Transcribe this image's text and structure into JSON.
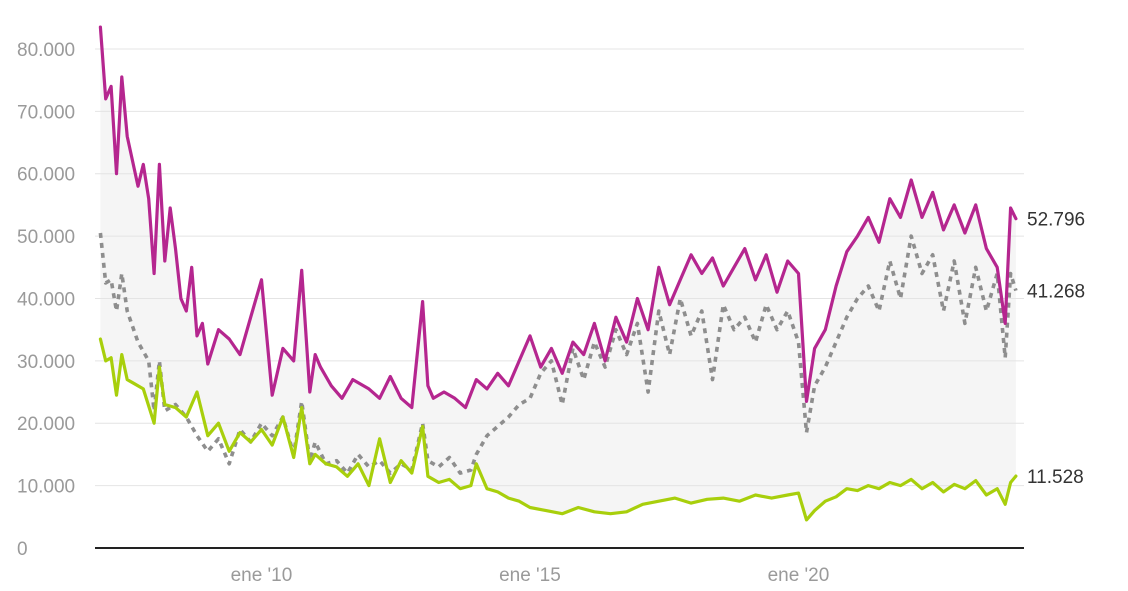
{
  "chart_data": {
    "type": "line",
    "y_ticks": [
      "0",
      "10.000",
      "20.000",
      "30.000",
      "40.000",
      "50.000",
      "60.000",
      "70.000",
      "80.000"
    ],
    "y_tick_values": [
      0,
      10000,
      20000,
      30000,
      40000,
      50000,
      60000,
      70000,
      80000
    ],
    "x_ticks": [
      {
        "label": "ene '10",
        "value": 2010.0
      },
      {
        "label": "ene '15",
        "value": 2015.0
      },
      {
        "label": "ene '20",
        "value": 2020.0
      }
    ],
    "xlim": [
      2006.9,
      2024.2
    ],
    "ylim": [
      0,
      84000
    ],
    "grid": true,
    "colors": {
      "magenta": "#b5268f",
      "green": "#a8cf0c",
      "gray": "#8e8e8e",
      "band": "#f5f5f5"
    },
    "series": [
      {
        "id": "magenta",
        "style": "solid",
        "end_label": "52.796",
        "x": [
          2007.0,
          2007.1,
          2007.2,
          2007.3,
          2007.4,
          2007.5,
          2007.6,
          2007.7,
          2007.8,
          2007.9,
          2008.0,
          2008.1,
          2008.2,
          2008.3,
          2008.4,
          2008.5,
          2008.6,
          2008.7,
          2008.8,
          2008.9,
          2009.0,
          2009.2,
          2009.4,
          2009.6,
          2009.8,
          2010.0,
          2010.2,
          2010.4,
          2010.6,
          2010.75,
          2010.9,
          2011.0,
          2011.1,
          2011.3,
          2011.5,
          2011.7,
          2012.0,
          2012.2,
          2012.4,
          2012.6,
          2012.8,
          2013.0,
          2013.1,
          2013.2,
          2013.4,
          2013.6,
          2013.8,
          2014.0,
          2014.2,
          2014.4,
          2014.6,
          2014.8,
          2015.0,
          2015.2,
          2015.4,
          2015.6,
          2015.8,
          2016.0,
          2016.2,
          2016.4,
          2016.6,
          2016.8,
          2017.0,
          2017.2,
          2017.4,
          2017.6,
          2017.8,
          2018.0,
          2018.2,
          2018.4,
          2018.6,
          2018.8,
          2019.0,
          2019.2,
          2019.4,
          2019.6,
          2019.8,
          2020.0,
          2020.15,
          2020.3,
          2020.5,
          2020.7,
          2020.9,
          2021.1,
          2021.3,
          2021.5,
          2021.7,
          2021.9,
          2022.1,
          2022.3,
          2022.5,
          2022.7,
          2022.9,
          2023.1,
          2023.3,
          2023.5,
          2023.7,
          2023.85,
          2023.95,
          2024.05
        ],
        "y": [
          83500,
          72000,
          74000,
          60000,
          75500,
          66000,
          62000,
          58000,
          61500,
          56000,
          44000,
          61500,
          46000,
          54500,
          48000,
          40000,
          38000,
          45000,
          34000,
          36000,
          29500,
          35000,
          33500,
          31000,
          37000,
          43000,
          24500,
          32000,
          30000,
          44500,
          25000,
          31000,
          29000,
          26000,
          24000,
          27000,
          25500,
          24000,
          27500,
          24000,
          22500,
          39500,
          26000,
          24000,
          25000,
          24000,
          22500,
          27000,
          25500,
          28000,
          26000,
          30000,
          34000,
          29000,
          32000,
          28000,
          33000,
          31000,
          36000,
          30000,
          37000,
          33000,
          40000,
          35000,
          45000,
          39000,
          43000,
          47000,
          44000,
          46500,
          42000,
          45000,
          48000,
          43000,
          47000,
          41000,
          46000,
          44000,
          23500,
          32000,
          35000,
          42000,
          47500,
          50000,
          53000,
          49000,
          56000,
          53000,
          59000,
          53000,
          57000,
          51000,
          55000,
          50500,
          55000,
          48000,
          45000,
          36000,
          54500,
          52796
        ]
      },
      {
        "id": "gray",
        "style": "dotted",
        "end_label": "41.268",
        "x": [
          2007.0,
          2007.1,
          2007.2,
          2007.3,
          2007.4,
          2007.5,
          2007.7,
          2007.9,
          2008.0,
          2008.1,
          2008.2,
          2008.4,
          2008.6,
          2008.8,
          2009.0,
          2009.2,
          2009.4,
          2009.6,
          2009.8,
          2010.0,
          2010.2,
          2010.4,
          2010.6,
          2010.75,
          2010.9,
          2011.0,
          2011.2,
          2011.4,
          2011.6,
          2011.8,
          2012.0,
          2012.2,
          2012.4,
          2012.6,
          2012.8,
          2013.0,
          2013.1,
          2013.3,
          2013.5,
          2013.7,
          2013.9,
          2014.0,
          2014.2,
          2014.4,
          2014.6,
          2014.8,
          2015.0,
          2015.2,
          2015.4,
          2015.6,
          2015.8,
          2016.0,
          2016.2,
          2016.4,
          2016.6,
          2016.8,
          2017.0,
          2017.2,
          2017.4,
          2017.6,
          2017.8,
          2018.0,
          2018.2,
          2018.4,
          2018.6,
          2018.8,
          2019.0,
          2019.2,
          2019.4,
          2019.6,
          2019.8,
          2020.0,
          2020.15,
          2020.3,
          2020.5,
          2020.7,
          2020.9,
          2021.1,
          2021.3,
          2021.5,
          2021.7,
          2021.9,
          2022.1,
          2022.3,
          2022.5,
          2022.7,
          2022.9,
          2023.1,
          2023.3,
          2023.5,
          2023.7,
          2023.85,
          2023.95,
          2024.05
        ],
        "y": [
          50500,
          42500,
          43000,
          38000,
          44000,
          38000,
          33000,
          30000,
          22000,
          30000,
          22000,
          23000,
          21000,
          18000,
          15500,
          17500,
          13500,
          19000,
          17000,
          20000,
          18000,
          21000,
          15000,
          23500,
          14000,
          17000,
          13500,
          14000,
          12000,
          15000,
          13000,
          14000,
          12000,
          13500,
          12500,
          20000,
          14000,
          13000,
          14500,
          12000,
          12500,
          15000,
          18000,
          19500,
          21000,
          23000,
          24000,
          28000,
          30000,
          23000,
          32000,
          27000,
          33000,
          29000,
          35000,
          31000,
          36000,
          25000,
          38000,
          31000,
          40000,
          34000,
          38000,
          27000,
          39000,
          35000,
          37000,
          33000,
          39000,
          35000,
          38000,
          33000,
          18500,
          26000,
          29000,
          33000,
          37000,
          40000,
          42000,
          38000,
          46000,
          40000,
          50000,
          44000,
          47000,
          38000,
          46000,
          36000,
          45000,
          38000,
          44000,
          30500,
          44000,
          41268
        ]
      },
      {
        "id": "green",
        "style": "solid",
        "end_label": "11.528",
        "x": [
          2007.0,
          2007.1,
          2007.2,
          2007.3,
          2007.4,
          2007.5,
          2007.6,
          2007.8,
          2008.0,
          2008.1,
          2008.2,
          2008.4,
          2008.6,
          2008.8,
          2009.0,
          2009.2,
          2009.4,
          2009.6,
          2009.8,
          2010.0,
          2010.2,
          2010.4,
          2010.6,
          2010.75,
          2010.9,
          2011.0,
          2011.2,
          2011.4,
          2011.6,
          2011.8,
          2012.0,
          2012.2,
          2012.4,
          2012.6,
          2012.8,
          2013.0,
          2013.1,
          2013.3,
          2013.5,
          2013.7,
          2013.9,
          2014.0,
          2014.2,
          2014.4,
          2014.6,
          2014.8,
          2015.0,
          2015.3,
          2015.6,
          2015.9,
          2016.2,
          2016.5,
          2016.8,
          2017.1,
          2017.4,
          2017.7,
          2018.0,
          2018.3,
          2018.6,
          2018.9,
          2019.2,
          2019.5,
          2019.8,
          2020.0,
          2020.15,
          2020.3,
          2020.5,
          2020.7,
          2020.9,
          2021.1,
          2021.3,
          2021.5,
          2021.7,
          2021.9,
          2022.1,
          2022.3,
          2022.5,
          2022.7,
          2022.9,
          2023.1,
          2023.3,
          2023.5,
          2023.7,
          2023.85,
          2023.95,
          2024.05
        ],
        "y": [
          33500,
          30000,
          30500,
          24500,
          31000,
          27000,
          26500,
          25500,
          20000,
          29000,
          23000,
          22500,
          21000,
          25000,
          18000,
          20000,
          15500,
          18500,
          17000,
          19000,
          16500,
          21000,
          14500,
          22500,
          13500,
          15000,
          13500,
          13000,
          11500,
          13500,
          10000,
          17500,
          10500,
          14000,
          12000,
          19500,
          11500,
          10500,
          11000,
          9500,
          10000,
          13500,
          9500,
          9000,
          8000,
          7500,
          6500,
          6000,
          5500,
          6500,
          5800,
          5500,
          5800,
          7000,
          7500,
          8000,
          7200,
          7800,
          8000,
          7500,
          8500,
          8000,
          8500,
          8800,
          4500,
          6000,
          7500,
          8200,
          9500,
          9200,
          10000,
          9500,
          10500,
          10000,
          11000,
          9500,
          10500,
          9000,
          10200,
          9500,
          10800,
          8500,
          9500,
          7000,
          10500,
          11528
        ]
      }
    ]
  }
}
